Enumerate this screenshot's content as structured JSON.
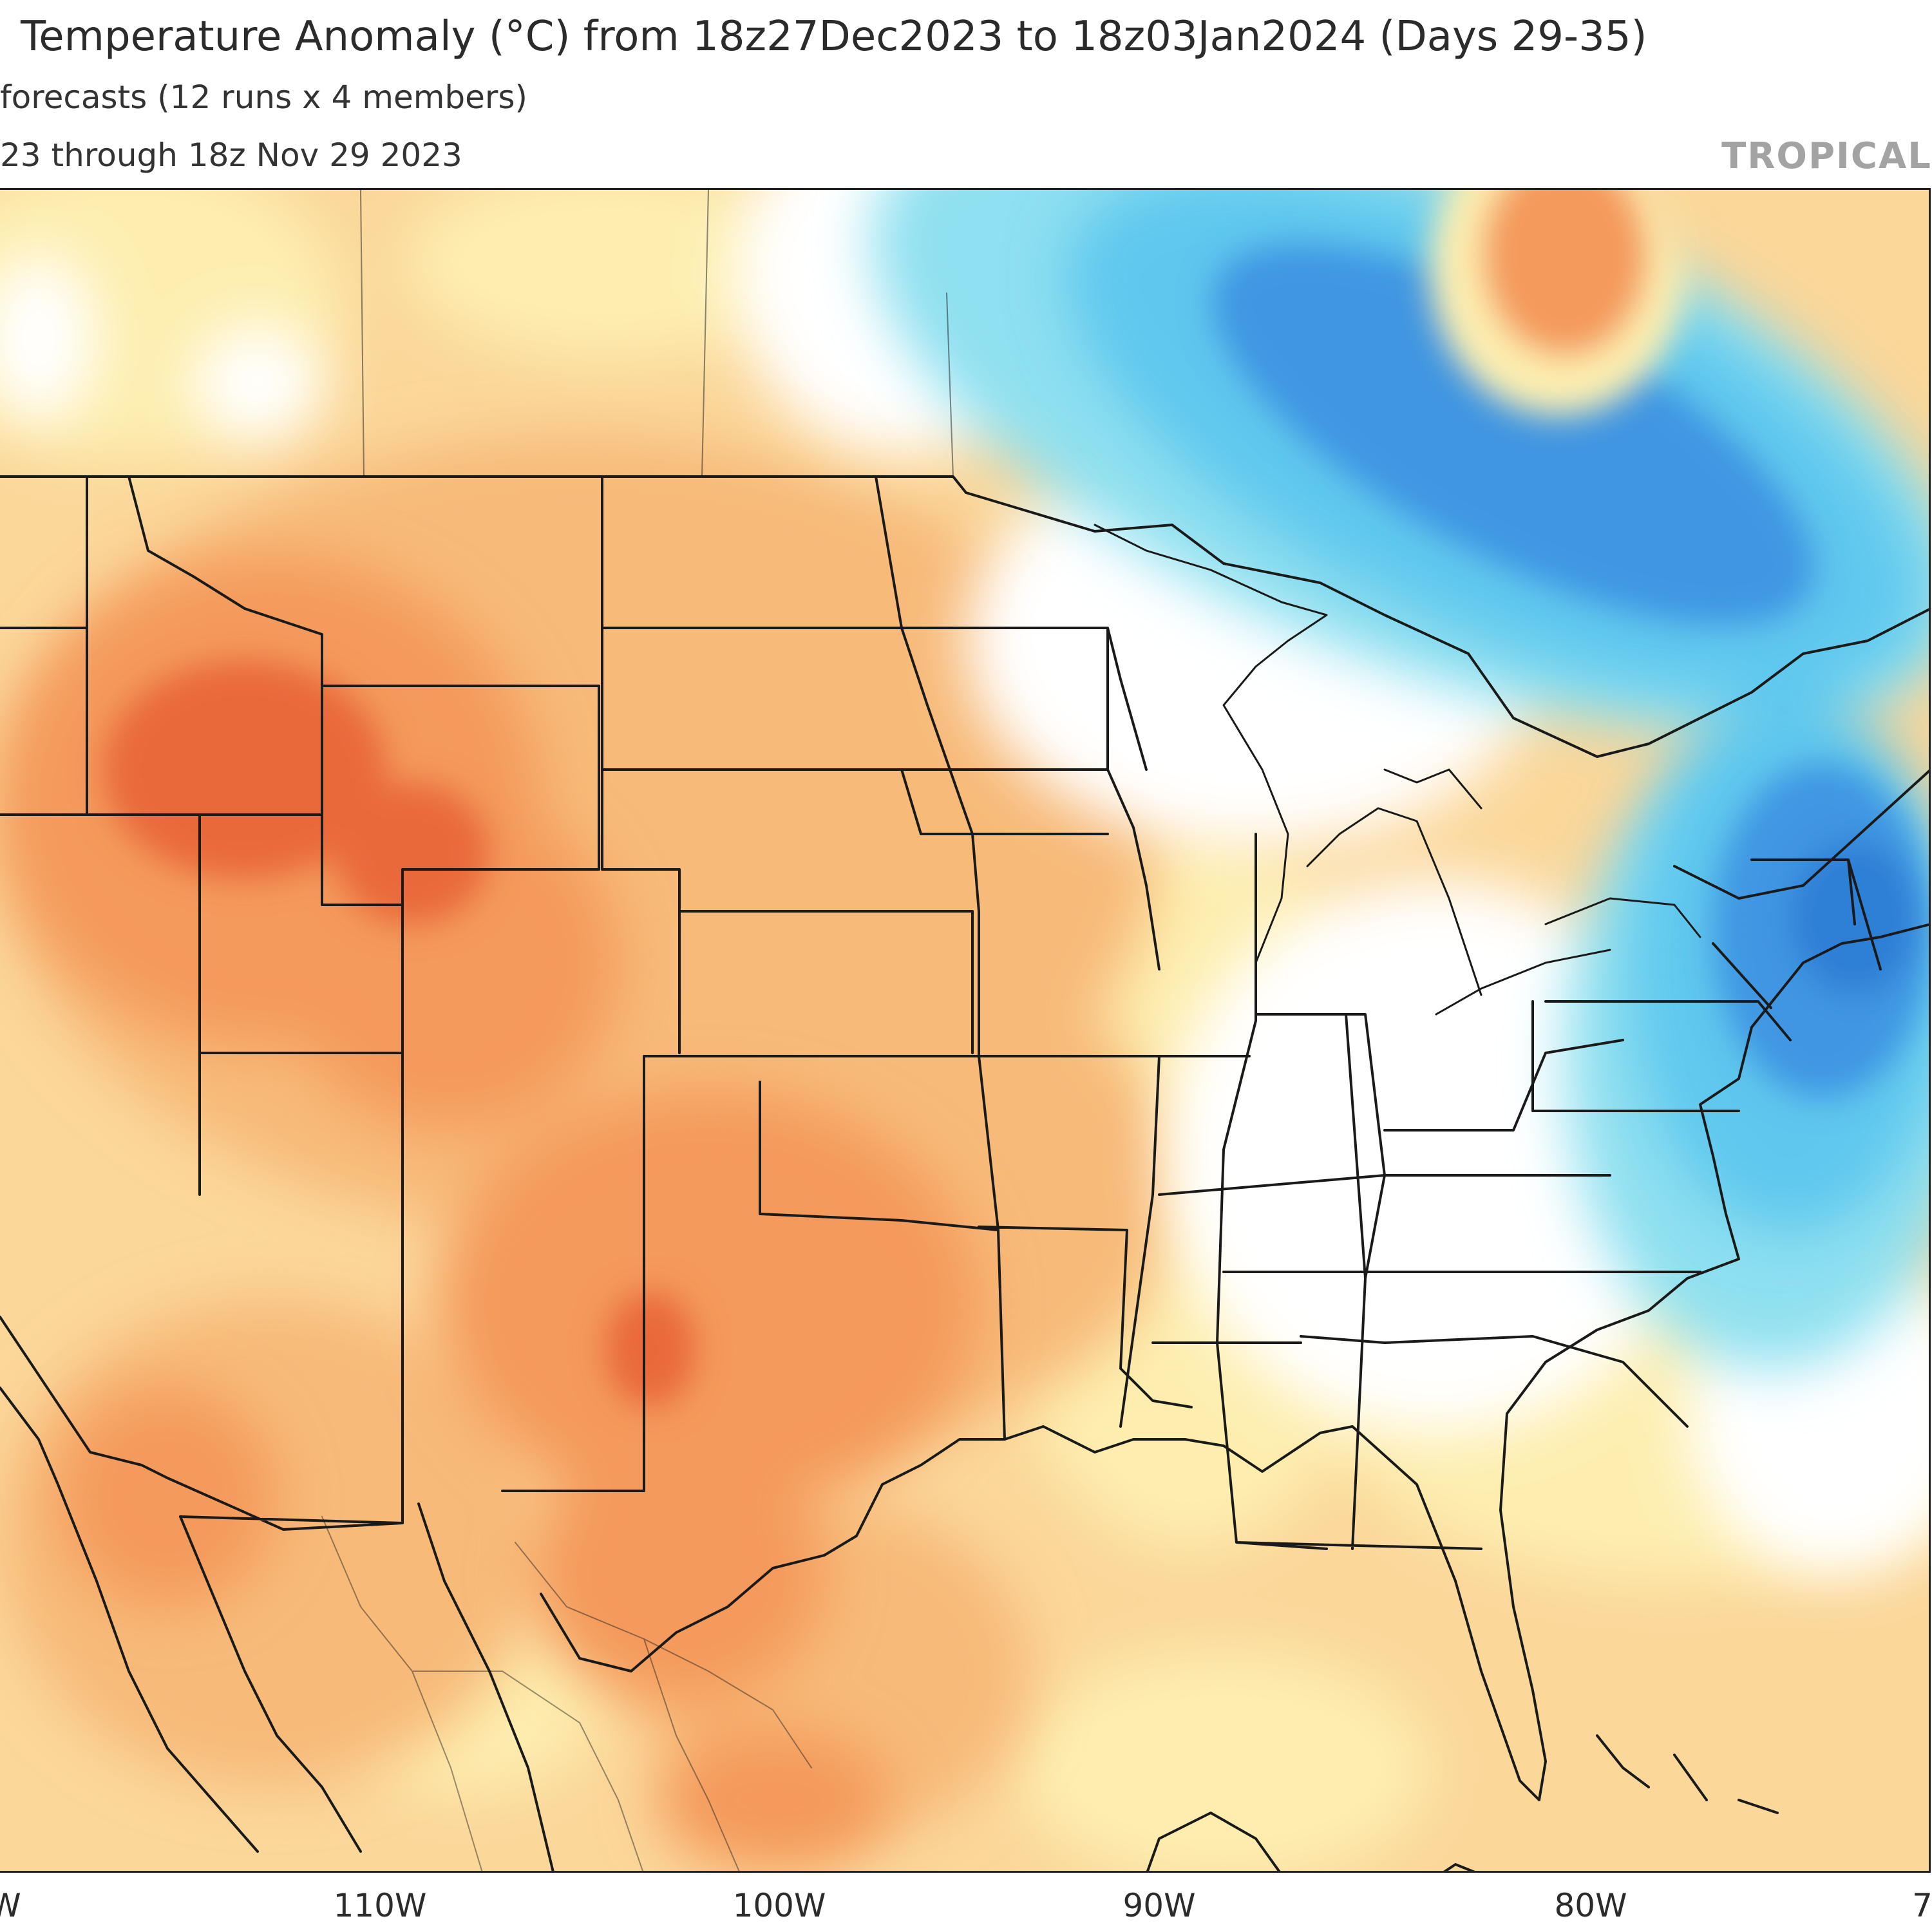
{
  "header": {
    "title": "Temperature Anomaly (°C) from 18z27Dec2023 to 18z03Jan2024 (Days 29-35)",
    "subtitle": "forecasts (12 runs x 4 members)",
    "date_range": "23 through 18z Nov 29 2023",
    "brand": "TROPICAL"
  },
  "axis": {
    "lon_labels": [
      "W",
      "110W",
      "100W",
      "90W",
      "80W",
      "7"
    ]
  },
  "colors": {
    "ocean_background": "#fbd79a",
    "light_warm": "#fdeeb0",
    "warm": "#f7ba79",
    "warmer": "#f49a5c",
    "warmest": "#e9693b",
    "neutral": "#ffffff",
    "light_cool": "#8fe0f0",
    "cool": "#5fc7ee",
    "cooler": "#3f96e2",
    "coolest": "#2e7fd6",
    "boundary": "#1a1a1a"
  }
}
